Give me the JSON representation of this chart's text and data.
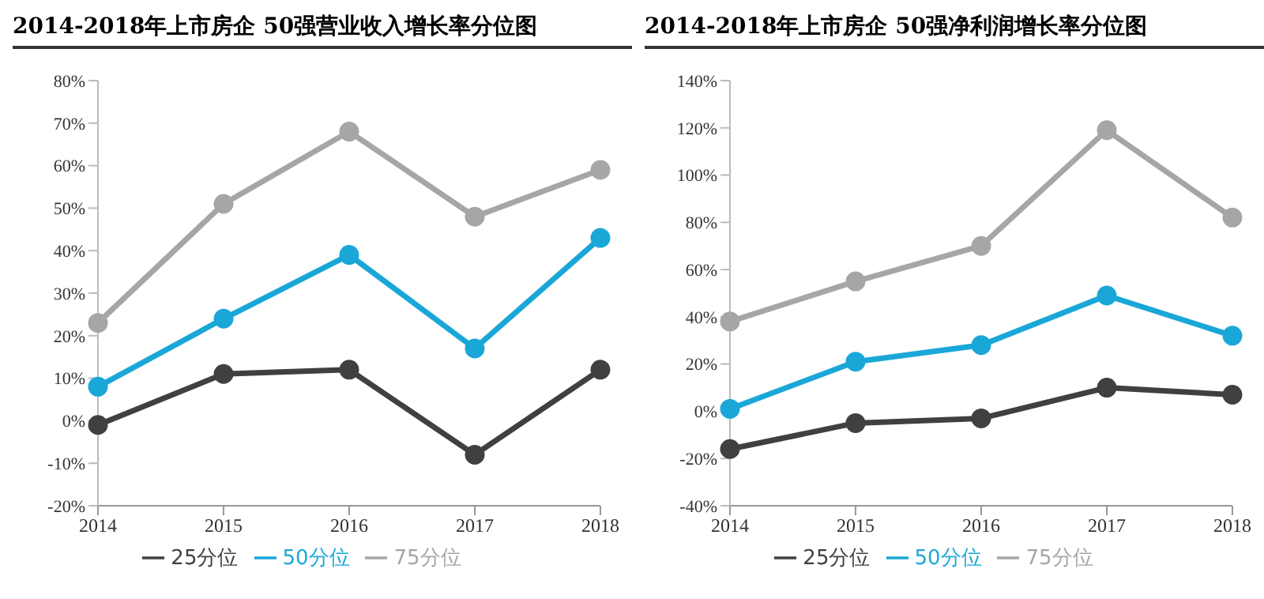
{
  "chart_data": [
    {
      "type": "line",
      "title": "2014-2018年上市房企 50强营业收入增长率分位图",
      "categories": [
        "2014",
        "2015",
        "2016",
        "2017",
        "2018"
      ],
      "series": [
        {
          "name": "25分位",
          "color": "#404040",
          "values": [
            -1,
            11,
            12,
            -8,
            12
          ]
        },
        {
          "name": "50分位",
          "color": "#1aa7d8",
          "values": [
            8,
            24,
            39,
            17,
            43
          ]
        },
        {
          "name": "75分位",
          "color": "#a6a6a6",
          "values": [
            23,
            51,
            68,
            48,
            59
          ]
        }
      ],
      "ylim": [
        -20,
        80
      ],
      "yticks": [
        {
          "value": -20,
          "label": "-20%"
        },
        {
          "value": -10,
          "label": "-10%"
        },
        {
          "value": 0,
          "label": "0%"
        },
        {
          "value": 10,
          "label": "10%"
        },
        {
          "value": 20,
          "label": "20%"
        },
        {
          "value": 30,
          "label": "30%"
        },
        {
          "value": 40,
          "label": "40%"
        },
        {
          "value": 50,
          "label": "50%"
        },
        {
          "value": 60,
          "label": "60%"
        },
        {
          "value": 70,
          "label": "70%"
        },
        {
          "value": 80,
          "label": "80%"
        }
      ],
      "marker": "circle",
      "legend": "bottom",
      "grid": false
    },
    {
      "type": "line",
      "title": "2014-2018年上市房企 50强净利润增长率分位图",
      "categories": [
        "2014",
        "2015",
        "2016",
        "2017",
        "2018"
      ],
      "series": [
        {
          "name": "25分位",
          "color": "#404040",
          "values": [
            -16,
            -5,
            -3,
            10,
            7
          ]
        },
        {
          "name": "50分位",
          "color": "#1aa7d8",
          "values": [
            1,
            21,
            28,
            49,
            32
          ]
        },
        {
          "name": "75分位",
          "color": "#a6a6a6",
          "values": [
            38,
            55,
            70,
            119,
            82
          ]
        }
      ],
      "ylim": [
        -40,
        140
      ],
      "yticks": [
        {
          "value": -40,
          "label": "-40%"
        },
        {
          "value": -20,
          "label": "-20%"
        },
        {
          "value": 0,
          "label": "0%"
        },
        {
          "value": 20,
          "label": "20%"
        },
        {
          "value": 40,
          "label": "40%"
        },
        {
          "value": 60,
          "label": "60%"
        },
        {
          "value": 80,
          "label": "80%"
        },
        {
          "value": 100,
          "label": "100%"
        },
        {
          "value": 120,
          "label": "120%"
        },
        {
          "value": 140,
          "label": "140%"
        }
      ],
      "marker": "circle",
      "legend": "bottom",
      "grid": false
    }
  ]
}
